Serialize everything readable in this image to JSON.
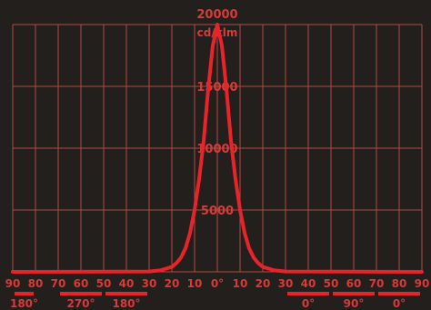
{
  "theme": {
    "background": "#231f1d",
    "grid_color": "#b04a42",
    "curve_color": "#e8242a",
    "label_color": "#d83a38"
  },
  "chart_data": {
    "type": "line",
    "title": "",
    "ylabel": "cd/klm",
    "grid": true,
    "y_ticks": [
      "20000",
      "15000",
      "10000",
      "5000"
    ],
    "ylim": [
      0,
      20000
    ],
    "x_ticks": [
      "90",
      "80",
      "70",
      "60",
      "50",
      "40",
      "30",
      "20",
      "10",
      "0°",
      "10",
      "20",
      "30",
      "40",
      "50",
      "60",
      "70",
      "80",
      "90"
    ],
    "xlim": [
      -90,
      90
    ],
    "plane_labels": [
      {
        "text": "180°",
        "from": -90,
        "to": -80
      },
      {
        "text": "270°",
        "from": -70,
        "to": -50
      },
      {
        "text": "180°",
        "from": -50,
        "to": -30
      },
      {
        "text": "0°",
        "from": 30,
        "to": 50
      },
      {
        "text": "90°",
        "from": 50,
        "to": 70
      },
      {
        "text": "0°",
        "from": 70,
        "to": 90
      }
    ],
    "series": [
      {
        "x": [
          -90,
          -30,
          -25,
          -20,
          -18,
          -16,
          -14,
          -12,
          -10,
          -8,
          -6,
          -4,
          -2,
          0,
          2,
          4,
          6,
          8,
          10,
          12,
          14,
          16,
          18,
          20,
          25,
          30,
          90
        ],
        "y": [
          0,
          30,
          120,
          400,
          700,
          1150,
          1900,
          3150,
          5000,
          7500,
          10600,
          14800,
          18300,
          20000,
          18300,
          14800,
          10600,
          7500,
          5000,
          3150,
          1900,
          1150,
          700,
          400,
          120,
          30,
          0
        ]
      }
    ]
  }
}
